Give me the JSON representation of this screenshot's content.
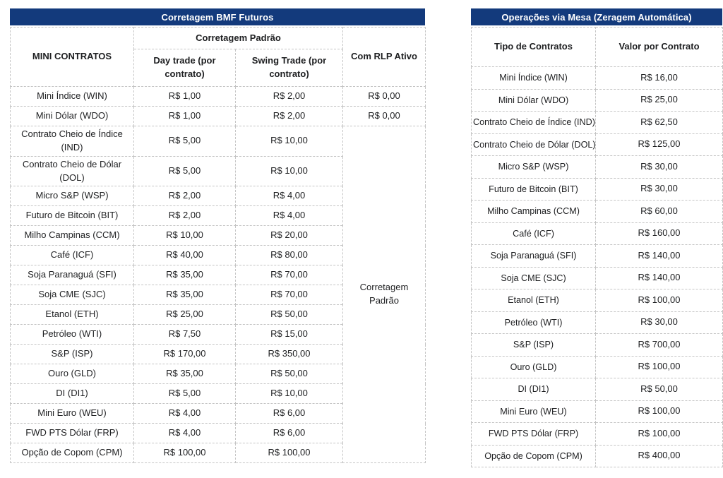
{
  "colors": {
    "header_bg": "#133a7c",
    "header_text": "#ffffff",
    "border": "#c4c4c4",
    "text": "#1e1f21"
  },
  "left_table": {
    "title": "Corretagem BMF Futuros",
    "header": {
      "col_contracts": "MINI CONTRATOS",
      "group": "Corretagem Padrão",
      "col_daytrade": "Day trade (por contrato)",
      "col_swing": "Swing Trade (por contrato)",
      "col_rlp": "Com RLP Ativo"
    },
    "merged_rlp_text": "Corretagem Padrão",
    "rows": [
      {
        "contract": "Mini Índice (WIN)",
        "day_trade": "R$ 1,00",
        "swing_trade": "R$ 2,00",
        "rlp": "R$ 0,00"
      },
      {
        "contract": "Mini Dólar (WDO)",
        "day_trade": "R$ 1,00",
        "swing_trade": "R$ 2,00",
        "rlp": "R$ 0,00"
      },
      {
        "contract": "Contrato Cheio de Índice (IND)",
        "day_trade": "R$ 5,00",
        "swing_trade": "R$ 10,00"
      },
      {
        "contract": "Contrato Cheio de Dólar (DOL)",
        "day_trade": "R$ 5,00",
        "swing_trade": "R$ 10,00"
      },
      {
        "contract": "Micro S&P (WSP)",
        "day_trade": "R$ 2,00",
        "swing_trade": "R$ 4,00"
      },
      {
        "contract": "Futuro de Bitcoin (BIT)",
        "day_trade": "R$ 2,00",
        "swing_trade": "R$ 4,00"
      },
      {
        "contract": "Milho Campinas (CCM)",
        "day_trade": "R$ 10,00",
        "swing_trade": "R$ 20,00"
      },
      {
        "contract": "Café (ICF)",
        "day_trade": "R$ 40,00",
        "swing_trade": "R$ 80,00"
      },
      {
        "contract": "Soja Paranaguá (SFI)",
        "day_trade": "R$ 35,00",
        "swing_trade": "R$ 70,00"
      },
      {
        "contract": "Soja CME (SJC)",
        "day_trade": "R$ 35,00",
        "swing_trade": "R$ 70,00"
      },
      {
        "contract": "Etanol (ETH)",
        "day_trade": "R$ 25,00",
        "swing_trade": "R$ 50,00"
      },
      {
        "contract": "Petróleo (WTI)",
        "day_trade": "R$ 7,50",
        "swing_trade": "R$ 15,00"
      },
      {
        "contract": "S&P (ISP)",
        "day_trade": "R$ 170,00",
        "swing_trade": "R$ 350,00"
      },
      {
        "contract": "Ouro (GLD)",
        "day_trade": "R$ 35,00",
        "swing_trade": "R$ 50,00"
      },
      {
        "contract": "DI (DI1)",
        "day_trade": "R$ 5,00",
        "swing_trade": "R$ 10,00"
      },
      {
        "contract": "Mini Euro (WEU)",
        "day_trade": "R$ 4,00",
        "swing_trade": "R$ 6,00"
      },
      {
        "contract": "FWD PTS Dólar (FRP)",
        "day_trade": "R$ 4,00",
        "swing_trade": "R$ 6,00"
      },
      {
        "contract": "Opção de Copom (CPM)",
        "day_trade": "R$ 100,00",
        "swing_trade": "R$ 100,00"
      }
    ]
  },
  "right_table": {
    "title": "Operações via Mesa (Zeragem Automática)",
    "header": {
      "col_contracts": "Tipo de Contratos",
      "col_value": "Valor por Contrato"
    },
    "rows": [
      {
        "contract": "Mini Índice (WIN)",
        "value": "R$ 16,00"
      },
      {
        "contract": "Mini Dólar (WDO)",
        "value": "R$ 25,00"
      },
      {
        "contract": "Contrato Cheio de Índice (IND)",
        "value": "R$ 62,50"
      },
      {
        "contract": "Contrato Cheio de Dólar (DOL)",
        "value": "R$ 125,00"
      },
      {
        "contract": "Micro S&P (WSP)",
        "value": "R$ 30,00"
      },
      {
        "contract": "Futuro de Bitcoin (BIT)",
        "value": "R$ 30,00"
      },
      {
        "contract": "Milho Campinas (CCM)",
        "value": "R$ 60,00"
      },
      {
        "contract": "Café (ICF)",
        "value": "R$ 160,00"
      },
      {
        "contract": "Soja Paranaguá (SFI)",
        "value": "R$ 140,00"
      },
      {
        "contract": "Soja CME (SJC)",
        "value": "R$ 140,00"
      },
      {
        "contract": "Etanol (ETH)",
        "value": "R$ 100,00"
      },
      {
        "contract": "Petróleo (WTI)",
        "value": "R$ 30,00"
      },
      {
        "contract": "S&P (ISP)",
        "value": "R$ 700,00"
      },
      {
        "contract": "Ouro (GLD)",
        "value": "R$ 100,00"
      },
      {
        "contract": "DI (DI1)",
        "value": "R$ 50,00"
      },
      {
        "contract": "Mini Euro (WEU)",
        "value": "R$ 100,00"
      },
      {
        "contract": "FWD PTS Dólar (FRP)",
        "value": "R$ 100,00"
      },
      {
        "contract": "Opção de Copom (CPM)",
        "value": "R$ 400,00"
      }
    ]
  }
}
